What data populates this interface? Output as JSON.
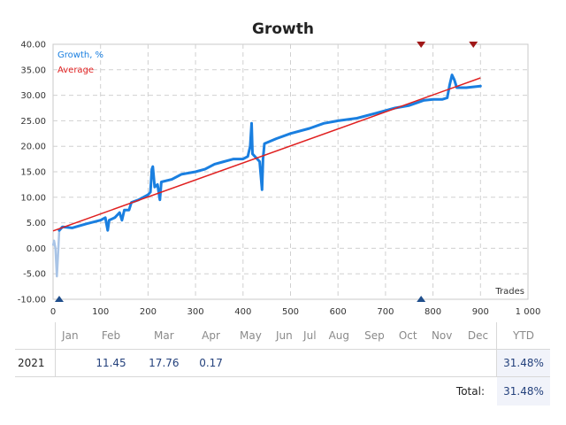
{
  "chart_data": {
    "type": "line",
    "title": "Growth",
    "xlabel": "Trades",
    "ylabel": "",
    "xlim": [
      0,
      1000
    ],
    "ylim": [
      -10,
      40
    ],
    "x_ticks": [
      "0",
      "100",
      "200",
      "300",
      "400",
      "500",
      "600",
      "700",
      "800",
      "900",
      "1 000"
    ],
    "y_ticks": [
      "40.00",
      "35.00",
      "30.00",
      "25.00",
      "20.00",
      "15.00",
      "10.00",
      "5.00",
      "0.00",
      "-5.00",
      "-10.00"
    ],
    "grid": true,
    "legend_position": "top-left",
    "series": [
      {
        "name": "Growth, %",
        "color": "#1a7fe0",
        "pre_color": "#a9c4e6",
        "pre_points": [
          [
            0,
            0.5
          ],
          [
            2,
            1.5
          ],
          [
            5,
            0
          ],
          [
            8,
            -5.5
          ],
          [
            10,
            -2
          ],
          [
            13,
            3.5
          ]
        ],
        "points": [
          [
            13,
            3.5
          ],
          [
            20,
            4.2
          ],
          [
            40,
            4.0
          ],
          [
            70,
            4.8
          ],
          [
            100,
            5.5
          ],
          [
            110,
            6.0
          ],
          [
            115,
            3.5
          ],
          [
            118,
            5.5
          ],
          [
            130,
            6.0
          ],
          [
            140,
            7.0
          ],
          [
            145,
            5.5
          ],
          [
            150,
            7.5
          ],
          [
            160,
            7.5
          ],
          [
            165,
            9.0
          ],
          [
            180,
            9.5
          ],
          [
            200,
            10.5
          ],
          [
            205,
            11.0
          ],
          [
            208,
            15.5
          ],
          [
            210,
            16.0
          ],
          [
            214,
            12.0
          ],
          [
            220,
            12.5
          ],
          [
            225,
            9.5
          ],
          [
            228,
            13.0
          ],
          [
            250,
            13.5
          ],
          [
            270,
            14.5
          ],
          [
            300,
            15.0
          ],
          [
            320,
            15.5
          ],
          [
            340,
            16.5
          ],
          [
            360,
            17.0
          ],
          [
            380,
            17.5
          ],
          [
            400,
            17.5
          ],
          [
            410,
            18.0
          ],
          [
            415,
            20.0
          ],
          [
            418,
            24.5
          ],
          [
            420,
            18.5
          ],
          [
            425,
            18.0
          ],
          [
            430,
            17.5
          ],
          [
            435,
            17.0
          ],
          [
            440,
            11.5
          ],
          [
            442,
            17.5
          ],
          [
            445,
            20.5
          ],
          [
            470,
            21.5
          ],
          [
            500,
            22.5
          ],
          [
            540,
            23.5
          ],
          [
            570,
            24.5
          ],
          [
            600,
            25.0
          ],
          [
            640,
            25.5
          ],
          [
            680,
            26.5
          ],
          [
            720,
            27.5
          ],
          [
            750,
            28.0
          ],
          [
            780,
            29.0
          ],
          [
            800,
            29.2
          ],
          [
            820,
            29.2
          ],
          [
            830,
            29.5
          ],
          [
            835,
            32.0
          ],
          [
            840,
            34.0
          ],
          [
            845,
            33.0
          ],
          [
            850,
            31.5
          ],
          [
            870,
            31.5
          ],
          [
            900,
            31.8
          ]
        ]
      },
      {
        "name": "Average",
        "color": "#e02020",
        "points": [
          [
            0,
            3.4
          ],
          [
            900,
            33.4
          ]
        ]
      }
    ],
    "markers_top": [
      {
        "x": 775,
        "color": "#a01818"
      },
      {
        "x": 885,
        "color": "#a01818"
      }
    ],
    "markers_bottom": [
      {
        "x": 13,
        "color": "#1f4e8c"
      },
      {
        "x": 775,
        "color": "#1f4e8c"
      }
    ]
  },
  "table": {
    "months": [
      "Jan",
      "Feb",
      "Mar",
      "Apr",
      "May",
      "Jun",
      "Jul",
      "Aug",
      "Sep",
      "Oct",
      "Nov",
      "Dec"
    ],
    "ytd_label": "YTD",
    "rows": [
      {
        "year": "2021",
        "values": [
          "",
          "11.45",
          "17.76",
          "0.17",
          "",
          "",
          "",
          "",
          "",
          "",
          "",
          ""
        ],
        "ytd": "31.48%"
      }
    ],
    "total_label": "Total:",
    "total_value": "31.48%"
  }
}
